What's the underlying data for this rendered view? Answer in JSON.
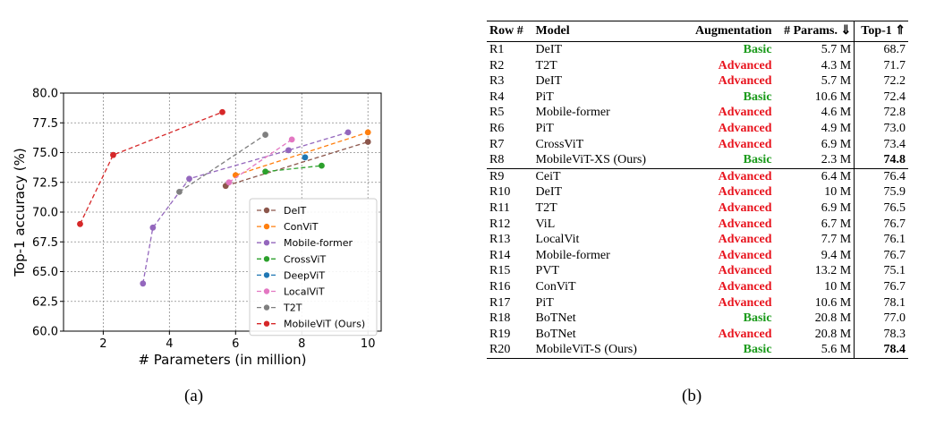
{
  "chart_data": {
    "type": "line",
    "title": "",
    "xlabel": "# Parameters (in million)",
    "ylabel": "Top-1 accuracy (%)",
    "xlim": [
      0.8,
      10.4
    ],
    "ylim": [
      60.0,
      80.0
    ],
    "xticks": [
      2,
      4,
      6,
      8,
      10
    ],
    "xtick_labels": [
      "2",
      "4",
      "6",
      "8",
      "10"
    ],
    "yticks": [
      60.0,
      62.5,
      65.0,
      67.5,
      70.0,
      72.5,
      75.0,
      77.5,
      80.0
    ],
    "ytick_labels": [
      "60.0",
      "62.5",
      "65.0",
      "67.5",
      "70.0",
      "72.5",
      "75.0",
      "77.5",
      "80.0"
    ],
    "grid": true,
    "legend_position": "lower-right",
    "series": [
      {
        "name": "DeIT",
        "color": "#8c564b",
        "points": [
          [
            5.7,
            72.2
          ],
          [
            10.0,
            75.9
          ]
        ]
      },
      {
        "name": "ConViT",
        "color": "#ff7f0e",
        "points": [
          [
            6.0,
            73.1
          ],
          [
            10.0,
            76.7
          ]
        ]
      },
      {
        "name": "Mobile-former",
        "color": "#9467bd",
        "points": [
          [
            3.2,
            64.0
          ],
          [
            3.5,
            68.7
          ],
          [
            4.6,
            72.8
          ],
          [
            7.6,
            75.2
          ],
          [
            9.4,
            76.7
          ]
        ]
      },
      {
        "name": "CrossViT",
        "color": "#2ca02c",
        "points": [
          [
            6.9,
            73.4
          ],
          [
            8.6,
            73.9
          ]
        ]
      },
      {
        "name": "DeepViT",
        "color": "#1f77b4",
        "points": [
          [
            8.1,
            74.6
          ]
        ]
      },
      {
        "name": "LocalViT",
        "color": "#e377c2",
        "points": [
          [
            5.8,
            72.5
          ],
          [
            7.7,
            76.1
          ]
        ]
      },
      {
        "name": "T2T",
        "color": "#7f7f7f",
        "points": [
          [
            4.3,
            71.7
          ],
          [
            6.9,
            76.5
          ]
        ]
      },
      {
        "name": "MobileViT (Ours)",
        "color": "#d62728",
        "points": [
          [
            1.3,
            69.0
          ],
          [
            2.3,
            74.8
          ],
          [
            5.6,
            78.4
          ]
        ]
      }
    ]
  },
  "captions": {
    "a": "(a)",
    "b": "(b)"
  },
  "table": {
    "headers": {
      "row": "Row #",
      "model": "Model",
      "augmentation": "Augmentation",
      "params": "# Params. ⇓",
      "top1": "Top-1 ⇑"
    },
    "rows": [
      {
        "row": "R1",
        "model": "DeIT",
        "aug": "Basic",
        "params": "5.7 M",
        "top1": "68.7",
        "bold": false
      },
      {
        "row": "R2",
        "model": "T2T",
        "aug": "Advanced",
        "params": "4.3 M",
        "top1": "71.7",
        "bold": false
      },
      {
        "row": "R3",
        "model": "DeIT",
        "aug": "Advanced",
        "params": "5.7 M",
        "top1": "72.2",
        "bold": false
      },
      {
        "row": "R4",
        "model": "PiT",
        "aug": "Basic",
        "params": "10.6 M",
        "top1": "72.4",
        "bold": false
      },
      {
        "row": "R5",
        "model": "Mobile-former",
        "aug": "Advanced",
        "params": "4.6 M",
        "top1": "72.8",
        "bold": false
      },
      {
        "row": "R6",
        "model": "PiT",
        "aug": "Advanced",
        "params": "4.9 M",
        "top1": "73.0",
        "bold": false
      },
      {
        "row": "R7",
        "model": "CrossViT",
        "aug": "Advanced",
        "params": "6.9 M",
        "top1": "73.4",
        "bold": false
      },
      {
        "row": "R8",
        "model": "MobileViT-XS (Ours)",
        "aug": "Basic",
        "params": "2.3 M",
        "top1": "74.8",
        "bold": true
      },
      {
        "row": "R9",
        "model": "CeiT",
        "aug": "Advanced",
        "params": "6.4 M",
        "top1": "76.4",
        "bold": false
      },
      {
        "row": "R10",
        "model": "DeIT",
        "aug": "Advanced",
        "params": "10 M",
        "top1": "75.9",
        "bold": false
      },
      {
        "row": "R11",
        "model": "T2T",
        "aug": "Advanced",
        "params": "6.9 M",
        "top1": "76.5",
        "bold": false
      },
      {
        "row": "R12",
        "model": "ViL",
        "aug": "Advanced",
        "params": "6.7 M",
        "top1": "76.7",
        "bold": false
      },
      {
        "row": "R13",
        "model": "LocalVit",
        "aug": "Advanced",
        "params": "7.7 M",
        "top1": "76.1",
        "bold": false
      },
      {
        "row": "R14",
        "model": "Mobile-former",
        "aug": "Advanced",
        "params": "9.4 M",
        "top1": "76.7",
        "bold": false
      },
      {
        "row": "R15",
        "model": "PVT",
        "aug": "Advanced",
        "params": "13.2 M",
        "top1": "75.1",
        "bold": false
      },
      {
        "row": "R16",
        "model": "ConViT",
        "aug": "Advanced",
        "params": "10 M",
        "top1": "76.7",
        "bold": false
      },
      {
        "row": "R17",
        "model": "PiT",
        "aug": "Advanced",
        "params": "10.6 M",
        "top1": "78.1",
        "bold": false
      },
      {
        "row": "R18",
        "model": "BoTNet",
        "aug": "Basic",
        "params": "20.8 M",
        "top1": "77.0",
        "bold": false
      },
      {
        "row": "R19",
        "model": "BoTNet",
        "aug": "Advanced",
        "params": "20.8 M",
        "top1": "78.3",
        "bold": false
      },
      {
        "row": "R20",
        "model": "MobileViT-S (Ours)",
        "aug": "Basic",
        "params": "5.6 M",
        "top1": "78.4",
        "bold": true
      }
    ]
  }
}
